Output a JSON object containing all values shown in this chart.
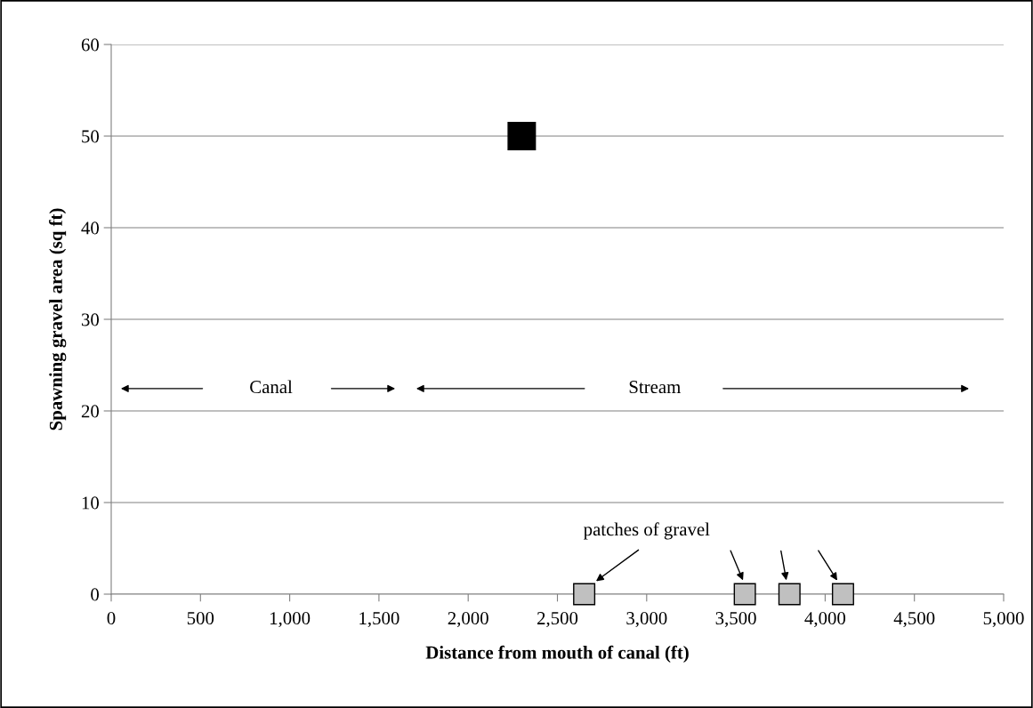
{
  "chart_data": {
    "type": "scatter",
    "xlabel": "Distance from mouth of canal (ft)",
    "ylabel": "Spawning gravel area (sq ft)",
    "series": [
      {
        "color": "#000000",
        "x": [
          2300
        ],
        "values": [
          50
        ]
      },
      {
        "color": "#c0c0c0",
        "x": [
          2650,
          3550,
          3800,
          4100
        ],
        "values": [
          0,
          0,
          0,
          0
        ]
      }
    ],
    "xlim": [
      0,
      5000
    ],
    "xticks": [
      {
        "value": 0,
        "label": "0"
      },
      {
        "value": 500,
        "label": "500"
      },
      {
        "value": 1000,
        "label": "1,000"
      },
      {
        "value": 1500,
        "label": "1,500"
      },
      {
        "value": 2000,
        "label": "2,000"
      },
      {
        "value": 2500,
        "label": "2,500"
      },
      {
        "value": 3000,
        "label": "3,000"
      },
      {
        "value": 3500,
        "label": "3,500"
      },
      {
        "value": 4000,
        "label": "4,000"
      },
      {
        "value": 4500,
        "label": "4,500"
      },
      {
        "value": 5000,
        "label": "5,000"
      }
    ],
    "ylim": [
      0,
      60
    ],
    "yticks": [
      0,
      10,
      20,
      30,
      40,
      50,
      60
    ],
    "annotations": [
      "Canal",
      "Stream",
      "patches of gravel"
    ],
    "grid": "y",
    "marker": "square",
    "legend": false
  }
}
